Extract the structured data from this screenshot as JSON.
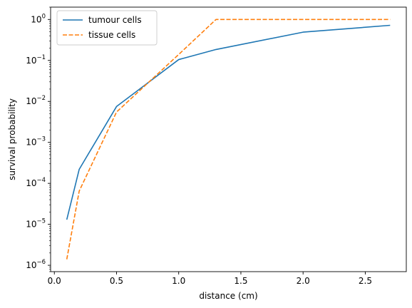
{
  "chart_data": {
    "type": "line",
    "title": "",
    "xlabel": "distance (cm)",
    "ylabel": "survival probability",
    "x_scale": "linear",
    "y_scale": "log",
    "xlim": [
      -0.03,
      2.83
    ],
    "ylim": [
      7e-07,
      2
    ],
    "xticks": [
      0.0,
      0.5,
      1.0,
      1.5,
      2.0,
      2.5
    ],
    "xtick_labels": [
      "0.0",
      "0.5",
      "1.0",
      "1.5",
      "2.0",
      "2.5"
    ],
    "yticks": [
      1e-06,
      1e-05,
      0.0001,
      0.001,
      0.01,
      0.1,
      1
    ],
    "ytick_labels": [
      {
        "base": "10",
        "exp": "−6"
      },
      {
        "base": "10",
        "exp": "−5"
      },
      {
        "base": "10",
        "exp": "−4"
      },
      {
        "base": "10",
        "exp": "−3"
      },
      {
        "base": "10",
        "exp": "−2"
      },
      {
        "base": "10",
        "exp": "−1"
      },
      {
        "base": "10",
        "exp": "0"
      }
    ],
    "grid": false,
    "legend_position": "top-left",
    "series": [
      {
        "name": "tumour cells",
        "color": "#1f77b4",
        "dash": "solid",
        "x": [
          0.1,
          0.2,
          0.5,
          1.0,
          1.3,
          2.0,
          2.7
        ],
        "y": [
          1.3e-05,
          0.00022,
          0.0075,
          0.105,
          0.185,
          0.49,
          0.72
        ]
      },
      {
        "name": "tissue cells",
        "color": "#ff7f0e",
        "dash": "dashed",
        "x": [
          0.1,
          0.2,
          0.5,
          1.0,
          1.3,
          2.0,
          2.7
        ],
        "y": [
          1.4e-06,
          6.5e-05,
          0.0055,
          0.14,
          1.0,
          1.0,
          1.0
        ]
      }
    ]
  }
}
